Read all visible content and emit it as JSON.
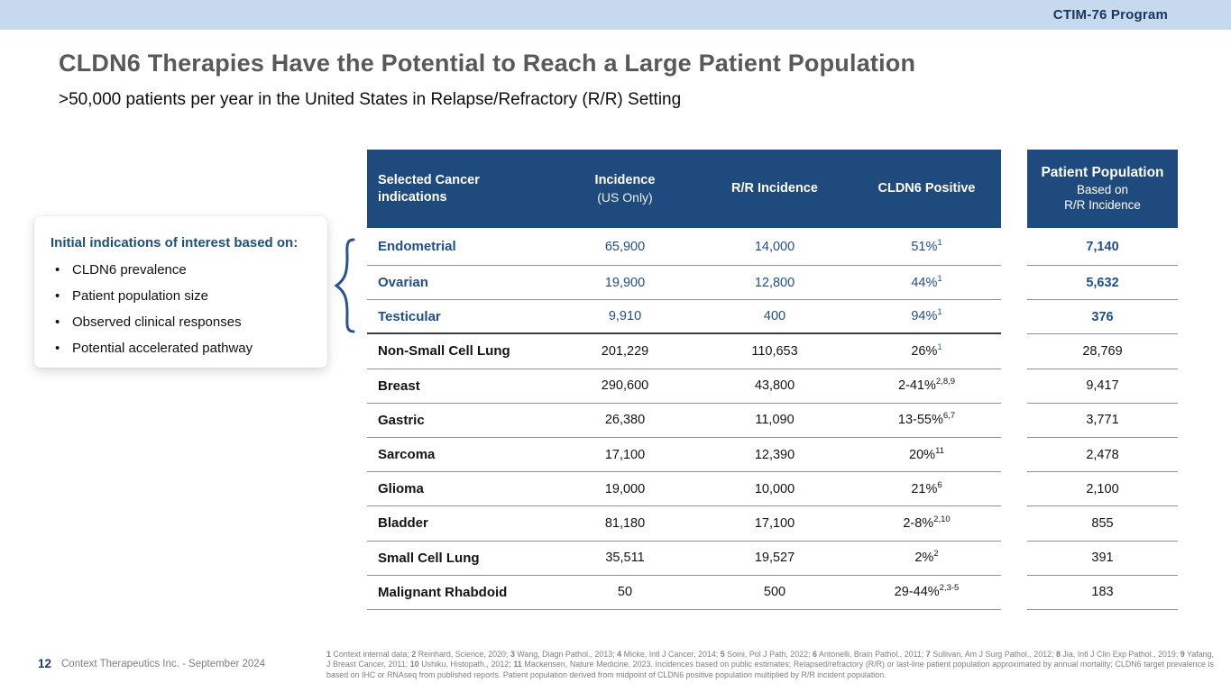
{
  "colors": {
    "topbar_blue": "#c6d9ef",
    "header_blue": "#1f4a7d",
    "highlight_blue": "#1f4e8c",
    "navy_text": "#17365d",
    "title_gray": "#595959"
  },
  "top_bar": {
    "program_label": "CTIM-76 Program"
  },
  "header": {
    "title": "CLDN6 Therapies Have the Potential to Reach a Large Patient Population",
    "subtitle": ">50,000 patients per year in the United States in Relapse/Refractory (R/R) Setting"
  },
  "info_card": {
    "heading": "Initial indications of interest based on:",
    "bullets": [
      "CLDN6 prevalence",
      "Patient population size",
      "Observed clinical responses",
      "Potential accelerated pathway"
    ]
  },
  "table": {
    "headers": {
      "indication": "Selected Cancer indications",
      "incidence": "Incidence",
      "incidence_sub": "(US Only)",
      "rr_incidence": "R/R Incidence",
      "cldn6_positive": "CLDN6 Positive"
    },
    "rows": [
      {
        "indication": "Endometrial",
        "incidence": "65,900",
        "rr_incidence": "14,000",
        "cldn6": "51%",
        "cldn6_sup": "1",
        "patient_population": "7,140",
        "highlight": true
      },
      {
        "indication": "Ovarian",
        "incidence": "19,900",
        "rr_incidence": "12,800",
        "cldn6": "44%",
        "cldn6_sup": "1",
        "patient_population": "5,632",
        "highlight": true
      },
      {
        "indication": "Testicular",
        "incidence": "9,910",
        "rr_incidence": "400",
        "cldn6": "94%",
        "cldn6_sup": "1",
        "patient_population": "376",
        "highlight": true,
        "thick_divider_below": true
      },
      {
        "indication": "Non-Small Cell Lung",
        "incidence": "201,229",
        "rr_incidence": "110,653",
        "cldn6": "26%",
        "cldn6_sup": "1",
        "sup_blue": true,
        "patient_population": "28,769"
      },
      {
        "indication": "Breast",
        "incidence": "290,600",
        "rr_incidence": "43,800",
        "cldn6": "2-41%",
        "cldn6_sup": "2,8,9",
        "patient_population": "9,417"
      },
      {
        "indication": "Gastric",
        "incidence": "26,380",
        "rr_incidence": "11,090",
        "cldn6": "13-55%",
        "cldn6_sup": "6,7",
        "patient_population": "3,771"
      },
      {
        "indication": "Sarcoma",
        "incidence": "17,100",
        "rr_incidence": "12,390",
        "cldn6": "20%",
        "cldn6_sup": "11",
        "patient_population": "2,478"
      },
      {
        "indication": "Glioma",
        "incidence": "19,000",
        "rr_incidence": "10,000",
        "cldn6": "21%",
        "cldn6_sup": "6",
        "patient_population": "2,100"
      },
      {
        "indication": "Bladder",
        "incidence": "81,180",
        "rr_incidence": "17,100",
        "cldn6": "2-8%",
        "cldn6_sup": "2,10",
        "patient_population": "855"
      },
      {
        "indication": "Small Cell Lung",
        "incidence": "35,511",
        "rr_incidence": "19,527",
        "cldn6": "2%",
        "cldn6_sup": "2",
        "patient_population": "391"
      },
      {
        "indication": "Malignant Rhabdoid",
        "incidence": "50",
        "rr_incidence": "500",
        "cldn6": "29-44%",
        "cldn6_sup": "2,3-5",
        "patient_population": "183"
      }
    ]
  },
  "patient_population_header": {
    "line1": "Patient Population",
    "line2": "Based on",
    "line3": "R/R Incidence"
  },
  "footnotes": {
    "segments": [
      {
        "b": true,
        "t": "1"
      },
      {
        "t": " Context internal data; "
      },
      {
        "b": true,
        "t": "2"
      },
      {
        "t": " Reinhard, Science, 2020; "
      },
      {
        "b": true,
        "t": "3"
      },
      {
        "t": " Wang, Diagn Pathol., 2013; "
      },
      {
        "b": true,
        "t": "4"
      },
      {
        "t": " Micke, Intl J Cancer, 2014; "
      },
      {
        "b": true,
        "t": "5"
      },
      {
        "t": " Soini, Pol J Path, 2022; "
      },
      {
        "b": true,
        "t": "6"
      },
      {
        "t": " Antonelli, Brain Pathol., 2011; "
      },
      {
        "b": true,
        "t": "7"
      },
      {
        "t": " Sullivan, Am J Surg Pathol., 2012; "
      },
      {
        "b": true,
        "t": "8"
      },
      {
        "t": " Jia, Intl J Clin Exp Pathol., 2019; "
      },
      {
        "b": true,
        "t": "9"
      },
      {
        "t": " Yafang, J Breast Cancer, 2011; "
      },
      {
        "b": true,
        "t": "10"
      },
      {
        "t": " Ushiku, Histopath., 2012; "
      },
      {
        "b": true,
        "t": "11"
      },
      {
        "t": " Mackensen, Nature Medicine, 2023. Incidences based on public estimates; Relapsed/refractory (R/R) or last-line patient population approximated by annual mortality; CLDN6 target prevalence is based on IHC or RNAseq from published reports. Patient population derived from midpoint of CLDN6 positive population multiplied by R/R incident population."
      }
    ]
  },
  "footer": {
    "page_number": "12",
    "company": "Context Therapeutics Inc. -  September 2024"
  }
}
